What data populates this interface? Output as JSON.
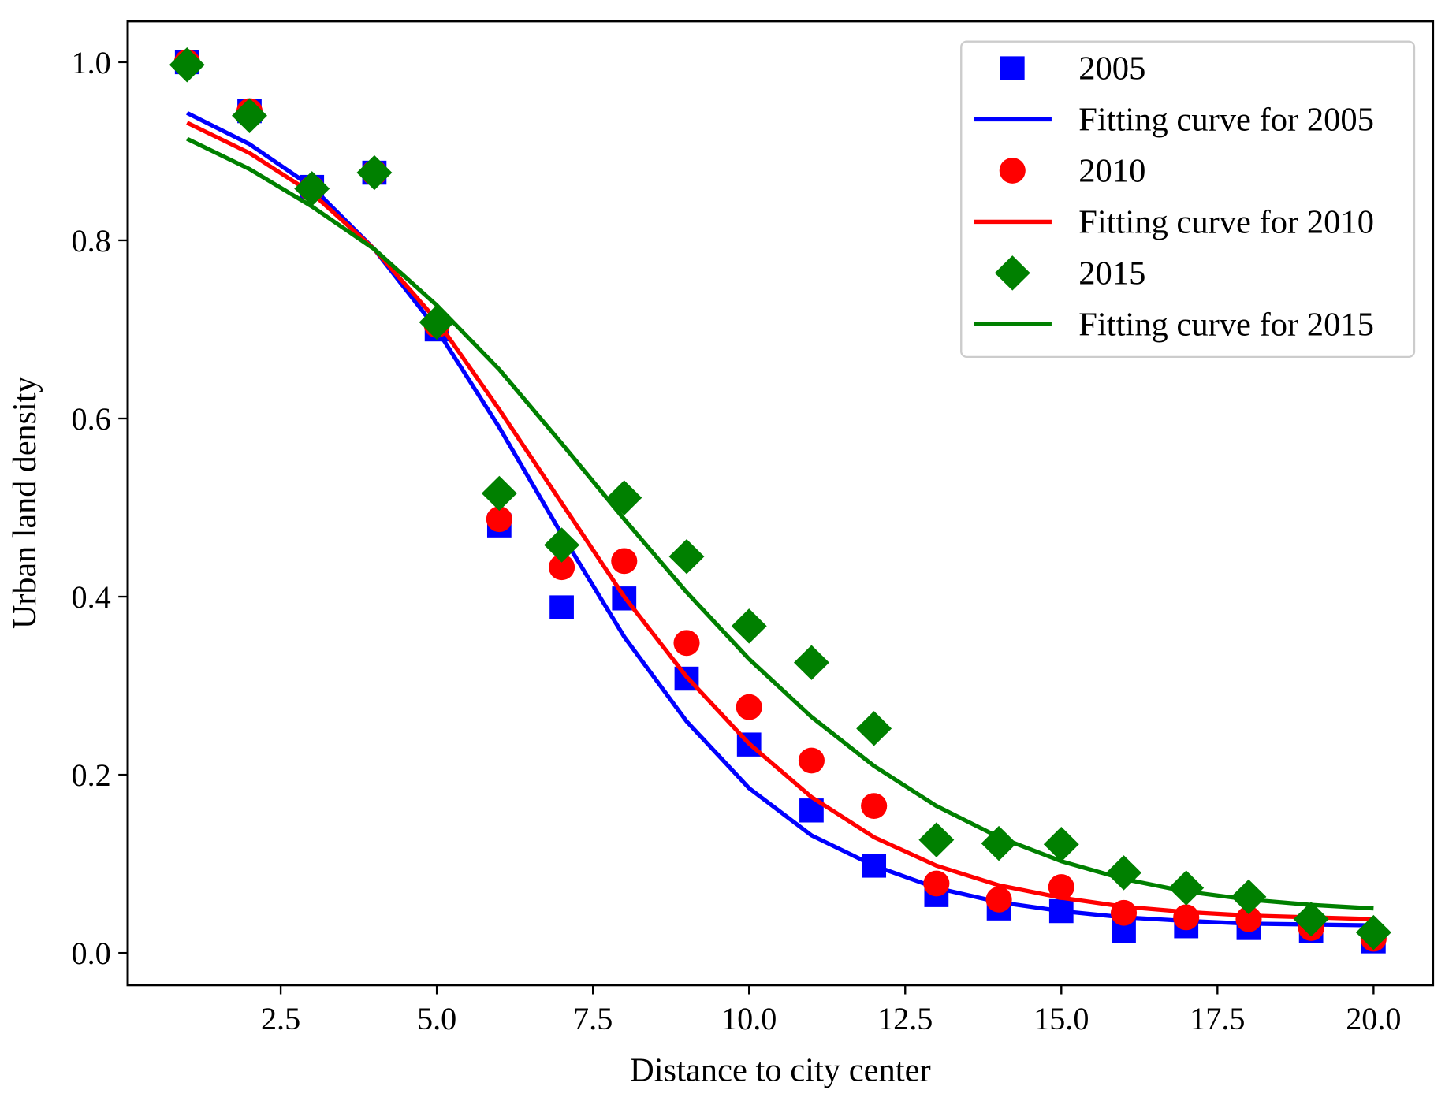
{
  "chart_data": {
    "type": "scatter",
    "title": "",
    "xlabel": "Distance to city center",
    "ylabel": "Urban land density",
    "xlim": [
      0.05,
      20.95
    ],
    "ylim": [
      -0.036,
      1.046
    ],
    "xticks": [
      2.5,
      5.0,
      7.5,
      10.0,
      12.5,
      15.0,
      17.5,
      20.0
    ],
    "xtick_labels": [
      "2.5",
      "5.0",
      "7.5",
      "10.0",
      "12.5",
      "15.0",
      "17.5",
      "20.0"
    ],
    "yticks": [
      0.0,
      0.2,
      0.4,
      0.6,
      0.8,
      1.0
    ],
    "ytick_labels": [
      "0.0",
      "0.2",
      "0.4",
      "0.6",
      "0.8",
      "1.0"
    ],
    "grid": false,
    "legend_position": "top-right",
    "x": [
      1,
      2,
      3,
      4,
      5,
      6,
      7,
      8,
      9,
      10,
      11,
      12,
      13,
      14,
      15,
      16,
      17,
      18,
      19,
      20
    ],
    "series": [
      {
        "name": "2005",
        "kind": "scatter",
        "marker": "square",
        "color": "#0000ff",
        "values": [
          1.0,
          0.945,
          0.86,
          0.876,
          0.7,
          0.48,
          0.388,
          0.398,
          0.308,
          0.234,
          0.16,
          0.098,
          0.065,
          0.05,
          0.047,
          0.025,
          0.03,
          0.028,
          0.025,
          0.013
        ]
      },
      {
        "name": "Fitting curve for 2005",
        "kind": "line",
        "color": "#0000ff",
        "values": [
          0.943,
          0.908,
          0.86,
          0.79,
          0.7,
          0.59,
          0.47,
          0.355,
          0.26,
          0.185,
          0.132,
          0.098,
          0.073,
          0.057,
          0.047,
          0.04,
          0.036,
          0.033,
          0.032,
          0.031
        ]
      },
      {
        "name": "2010",
        "kind": "scatter",
        "marker": "circle",
        "color": "#ff0000",
        "values": [
          1.0,
          0.945,
          0.858,
          0.876,
          0.705,
          0.487,
          0.433,
          0.44,
          0.348,
          0.276,
          0.216,
          0.165,
          0.078,
          0.06,
          0.074,
          0.045,
          0.04,
          0.038,
          0.028,
          0.016
        ]
      },
      {
        "name": "Fitting curve for 2010",
        "kind": "line",
        "color": "#ff0000",
        "values": [
          0.932,
          0.898,
          0.853,
          0.79,
          0.71,
          0.61,
          0.505,
          0.4,
          0.31,
          0.235,
          0.175,
          0.13,
          0.098,
          0.076,
          0.062,
          0.052,
          0.046,
          0.042,
          0.04,
          0.038
        ]
      },
      {
        "name": "2015",
        "kind": "scatter",
        "marker": "diamond",
        "color": "#008000",
        "values": [
          0.997,
          0.94,
          0.858,
          0.876,
          0.708,
          0.516,
          0.458,
          0.511,
          0.445,
          0.367,
          0.326,
          0.252,
          0.127,
          0.123,
          0.122,
          0.09,
          0.073,
          0.063,
          0.038,
          0.023
        ]
      },
      {
        "name": "Fitting curve for 2015",
        "kind": "line",
        "color": "#008000",
        "values": [
          0.914,
          0.88,
          0.838,
          0.79,
          0.727,
          0.655,
          0.572,
          0.487,
          0.405,
          0.33,
          0.265,
          0.21,
          0.165,
          0.13,
          0.103,
          0.083,
          0.069,
          0.06,
          0.054,
          0.05
        ]
      }
    ]
  }
}
